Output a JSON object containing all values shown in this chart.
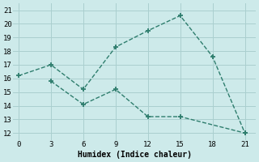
{
  "xlabel": "Humidex (Indice chaleur)",
  "line1_x": [
    0,
    3,
    6,
    9,
    12,
    15,
    18,
    21
  ],
  "line1_y": [
    16.2,
    17.0,
    15.2,
    18.3,
    19.5,
    20.6,
    17.6,
    12.0
  ],
  "line2_x": [
    3,
    6,
    9,
    12,
    15,
    21
  ],
  "line2_y": [
    15.8,
    14.1,
    15.2,
    13.2,
    13.2,
    12.0
  ],
  "line_color": "#2e7d6d",
  "bg_color": "#cdeaea",
  "grid_color": "#aacfcf",
  "xlim": [
    -0.5,
    22
  ],
  "ylim": [
    11.5,
    21.5
  ],
  "xticks": [
    0,
    3,
    6,
    9,
    12,
    15,
    18,
    21
  ],
  "yticks": [
    12,
    13,
    14,
    15,
    16,
    17,
    18,
    19,
    20,
    21
  ],
  "marker": "+",
  "markersize": 5,
  "linewidth": 1.0
}
